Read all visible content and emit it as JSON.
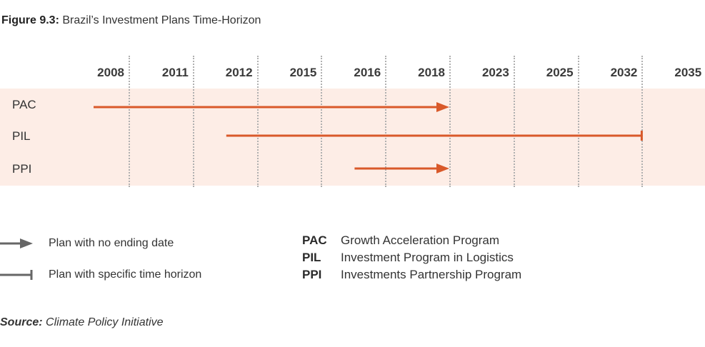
{
  "figure": {
    "label": "Figure 9.3:",
    "title": "Brazil’s Investment Plans Time-Horizon"
  },
  "chart_data": {
    "type": "timeline",
    "columns": [
      "2008",
      "2011",
      "2012",
      "2015",
      "2016",
      "2018",
      "2023",
      "2025",
      "2032",
      "2035"
    ],
    "rows": [
      {
        "name": "PAC",
        "start": "2008",
        "end": "2018",
        "end_type": "arrow"
      },
      {
        "name": "PIL",
        "start": "2012",
        "end": "2032",
        "end_type": "bar"
      },
      {
        "name": "PPI",
        "start": "2016",
        "end": "2018",
        "end_type": "arrow"
      }
    ],
    "colors": {
      "bar": "#d9592a",
      "band": "#fdede6",
      "legend": "#666666"
    }
  },
  "legend": [
    {
      "icon": "arrow-icon",
      "label": "Plan with no ending date"
    },
    {
      "icon": "bar-end-icon",
      "label": "Plan with specific time horizon"
    }
  ],
  "abbreviations": [
    {
      "key": "PAC",
      "value": "Growth Acceleration Program"
    },
    {
      "key": "PIL",
      "value": "Investment Program in Logistics"
    },
    {
      "key": "PPI",
      "value": "Investments Partnership Program"
    }
  ],
  "source": {
    "label": "Source:",
    "text": "Climate Policy Initiative"
  }
}
